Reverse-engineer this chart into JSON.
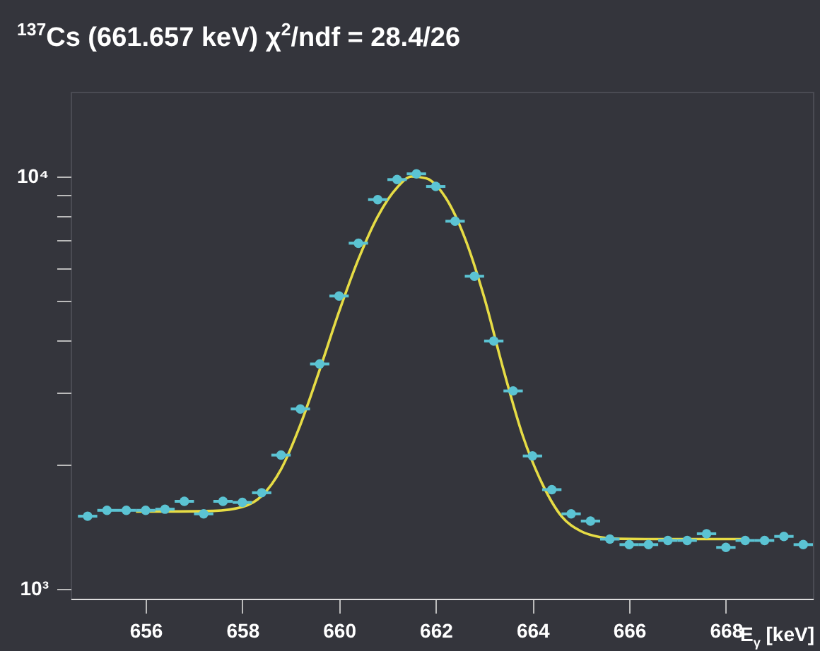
{
  "chart_data": {
    "type": "scatter",
    "title": "$^{137}$Cs (661.657 keV) χ$^{2}$/ndf = 28.4/26",
    "xlabel": "E$_{γ}$ [keV]",
    "xlim": [
      654.45,
      669.8
    ],
    "xticks": [
      656,
      658,
      660,
      662,
      664,
      666,
      668
    ],
    "ylim": [
      946,
      16050
    ],
    "yticks": [
      {
        "value": 1000,
        "label": "10³"
      },
      {
        "value": 2000,
        "label": null
      },
      {
        "value": 3000,
        "label": null
      },
      {
        "value": 4000,
        "label": null
      },
      {
        "value": 5000,
        "label": null
      },
      {
        "value": 6000,
        "label": null
      },
      {
        "value": 7000,
        "label": null
      },
      {
        "value": 8000,
        "label": null
      },
      {
        "value": 9000,
        "label": null
      },
      {
        "value": 10000,
        "label": "10⁴"
      }
    ],
    "log": "y",
    "marker": "circle",
    "series": [
      {
        "color": "#5bc3d3",
        "x": [
          654.8,
          655.2,
          655.6,
          656.0,
          656.4,
          656.8,
          657.2,
          657.6,
          658.0,
          658.4,
          658.8,
          659.2,
          659.6,
          660.0,
          660.4,
          660.8,
          661.2,
          661.6,
          662.0,
          662.4,
          662.8,
          663.2,
          663.6,
          664.0,
          664.4,
          664.8,
          665.2,
          665.6,
          666.0,
          666.4,
          666.8,
          667.2,
          667.6,
          668.0,
          668.4,
          668.8,
          669.2,
          669.6
        ],
        "values": [
          1500,
          1550,
          1550,
          1550,
          1560,
          1630,
          1520,
          1630,
          1620,
          1710,
          2110,
          2730,
          3510,
          5130,
          6890,
          8790,
          9830,
          10150,
          9460,
          7790,
          5730,
          3990,
          3020,
          2100,
          1740,
          1520,
          1460,
          1320,
          1280,
          1280,
          1310,
          1310,
          1360,
          1260,
          1310,
          1310,
          1340,
          1280
        ],
        "xerrors": [
          0.2,
          0.2,
          0.2,
          0.2,
          0.2,
          0.2,
          0.2,
          0.2,
          0.2,
          0.2,
          0.2,
          0.2,
          0.2,
          0.2,
          0.2,
          0.2,
          0.2,
          0.2,
          0.2,
          0.2,
          0.2,
          0.2,
          0.2,
          0.2,
          0.2,
          0.2,
          0.2,
          0.2,
          0.2,
          0.2,
          0.2,
          0.2,
          0.2,
          0.2,
          0.2,
          0.2,
          0.2,
          0.2
        ]
      },
      {
        "type": "line",
        "marker": "none",
        "color": "#e6dc45",
        "x": [
          655.8,
          656.6,
          657.4,
          658.0,
          658.4,
          658.8,
          659.2,
          659.6,
          660.0,
          660.4,
          660.8,
          661.2,
          661.5,
          661.8,
          662.2,
          662.6,
          663.0,
          663.4,
          663.8,
          664.2,
          664.6,
          665.0,
          665.4,
          665.8,
          666.6,
          667.4,
          668.36
        ],
        "values": [
          1540,
          1540,
          1545,
          1580,
          1680,
          1950,
          2500,
          3400,
          4700,
          6300,
          8000,
          9400,
          10000,
          9900,
          8900,
          7100,
          5100,
          3400,
          2350,
          1800,
          1500,
          1380,
          1335,
          1322,
          1320,
          1320,
          1320
        ]
      }
    ]
  }
}
